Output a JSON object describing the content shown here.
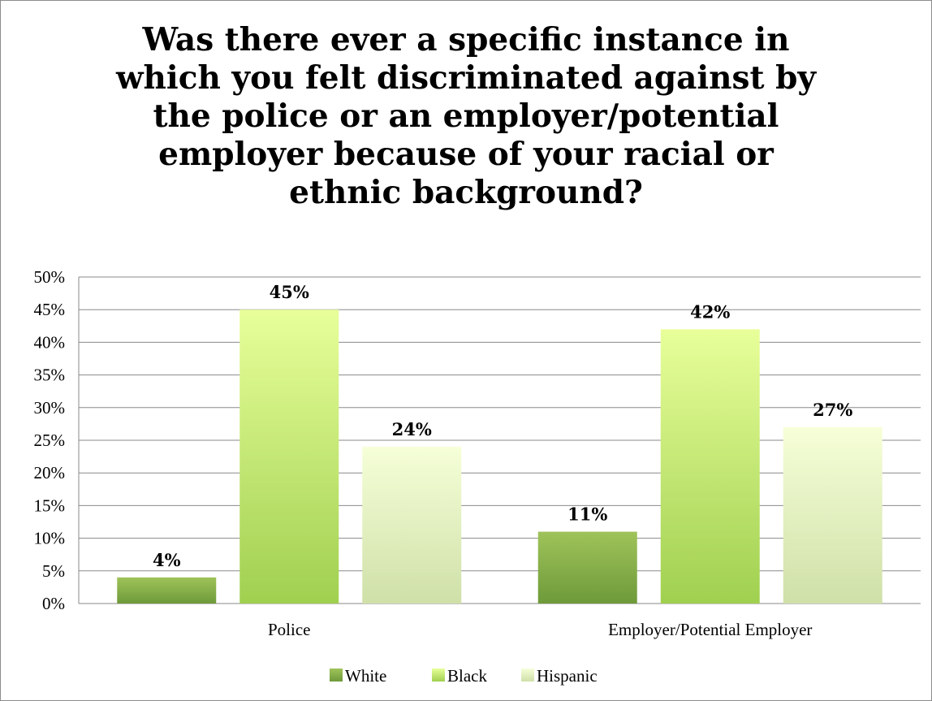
{
  "chart_data": {
    "type": "bar",
    "title": "Was there ever a specific instance in\nwhich you felt discriminated against by\nthe police or an employer/potential\nemployer because of your racial or\nethnic background?",
    "categories": [
      "Police",
      "Employer/Potential Employer"
    ],
    "series": [
      {
        "name": "White",
        "values": [
          4,
          11
        ],
        "labels": [
          "4%",
          "11%"
        ]
      },
      {
        "name": "Black",
        "values": [
          45,
          42
        ],
        "labels": [
          "45%",
          "42%"
        ]
      },
      {
        "name": "Hispanic",
        "values": [
          24,
          27
        ],
        "labels": [
          "24%",
          "27%"
        ]
      }
    ],
    "y_ticks": [
      "0%",
      "5%",
      "10%",
      "15%",
      "20%",
      "25%",
      "30%",
      "35%",
      "40%",
      "45%",
      "50%"
    ],
    "ylim": [
      0,
      50
    ],
    "grid": true,
    "legend_position": "bottom",
    "colors": {
      "White": [
        "#9fc35a",
        "#6e9a3a"
      ],
      "Black": [
        "#e8ff9a",
        "#a0d050"
      ],
      "Hispanic": [
        "#f6ffd8",
        "#cfe0a8"
      ]
    }
  }
}
